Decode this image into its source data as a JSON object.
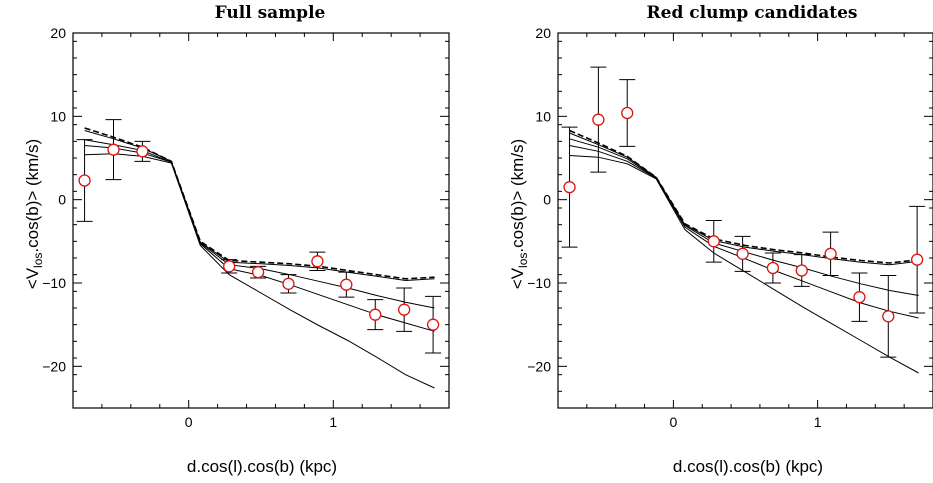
{
  "chart_data": [
    {
      "type": "scatter",
      "title": "Full sample",
      "xlabel": "d.cos(l).cos(b) (kpc)",
      "ylabel_main": "<V",
      "ylabel_sub": "los",
      "ylabel_tail": ".cos(b)> (km/s)",
      "xlim": [
        -0.8,
        1.8
      ],
      "ylim": [
        -25,
        20
      ],
      "x_ticks": [
        0,
        1
      ],
      "x_tick_labels": [
        "0",
        "1"
      ],
      "y_ticks": [
        -20,
        -10,
        0,
        10,
        20
      ],
      "y_tick_labels": [
        "−20",
        "−10",
        "0",
        "10",
        "20"
      ],
      "grid": false,
      "marker_color": "#dd1111",
      "points": [
        {
          "x": -0.72,
          "y": 2.3,
          "err_lo": 4.9,
          "err_hi": 4.9
        },
        {
          "x": -0.52,
          "y": 6.0,
          "err_lo": 3.6,
          "err_hi": 3.6
        },
        {
          "x": -0.32,
          "y": 5.8,
          "err_lo": 1.2,
          "err_hi": 1.2
        },
        {
          "x": 0.28,
          "y": -8.0,
          "err_lo": 0.8,
          "err_hi": 0.8
        },
        {
          "x": 0.48,
          "y": -8.7,
          "err_lo": 0.7,
          "err_hi": 0.7
        },
        {
          "x": 0.69,
          "y": -10.1,
          "err_lo": 1.1,
          "err_hi": 1.1
        },
        {
          "x": 0.89,
          "y": -7.4,
          "err_lo": 1.1,
          "err_hi": 1.1
        },
        {
          "x": 1.09,
          "y": -10.2,
          "err_lo": 1.5,
          "err_hi": 1.5
        },
        {
          "x": 1.29,
          "y": -13.8,
          "err_lo": 1.8,
          "err_hi": 1.8
        },
        {
          "x": 1.49,
          "y": -13.2,
          "err_lo": 2.6,
          "err_hi": 2.6
        },
        {
          "x": 1.69,
          "y": -15.0,
          "err_lo": 3.4,
          "err_hi": 3.4
        }
      ],
      "models": [
        {
          "style": "dashed",
          "x": [
            -0.72,
            -0.52,
            -0.32,
            -0.12,
            0.08,
            0.28,
            0.5,
            0.7,
            0.9,
            1.1,
            1.3,
            1.5,
            1.7
          ],
          "y": [
            8.6,
            7.5,
            6.3,
            4.6,
            -5.0,
            -7.3,
            -7.5,
            -7.7,
            -8.0,
            -8.5,
            -9.0,
            -9.5,
            -9.3
          ]
        },
        {
          "style": "solid",
          "x": [
            -0.72,
            -0.52,
            -0.32,
            -0.12,
            0.08,
            0.28,
            0.5,
            0.7,
            0.9,
            1.1,
            1.3,
            1.5,
            1.7
          ],
          "y": [
            8.3,
            7.3,
            6.2,
            4.6,
            -5.1,
            -7.5,
            -7.7,
            -7.9,
            -8.2,
            -8.7,
            -9.2,
            -9.7,
            -9.5
          ]
        },
        {
          "style": "solid",
          "x": [
            -0.72,
            -0.52,
            -0.32,
            -0.12,
            0.08,
            0.28,
            0.5,
            0.7,
            0.9,
            1.1,
            1.3,
            1.5,
            1.7
          ],
          "y": [
            7.2,
            6.6,
            5.9,
            4.5,
            -5.2,
            -7.8,
            -8.3,
            -9.0,
            -9.8,
            -10.6,
            -11.5,
            -12.3,
            -13.0
          ]
        },
        {
          "style": "solid",
          "x": [
            -0.72,
            -0.52,
            -0.32,
            -0.12,
            0.08,
            0.28,
            0.5,
            0.7,
            0.9,
            1.1,
            1.3,
            1.5,
            1.7
          ],
          "y": [
            6.5,
            6.2,
            5.6,
            4.5,
            -5.3,
            -8.3,
            -9.1,
            -10.2,
            -11.4,
            -12.6,
            -13.8,
            -14.8,
            -15.8
          ]
        },
        {
          "style": "solid",
          "x": [
            -0.72,
            -0.52,
            -0.32,
            -0.12,
            0.08,
            0.28,
            0.5,
            0.7,
            0.9,
            1.1,
            1.3,
            1.5,
            1.7
          ],
          "y": [
            5.4,
            5.5,
            5.2,
            4.4,
            -5.5,
            -9.0,
            -11.2,
            -13.2,
            -15.1,
            -16.9,
            -18.9,
            -21.0,
            -22.6
          ]
        }
      ]
    },
    {
      "type": "scatter",
      "title": "Red clump candidates",
      "xlabel": "d.cos(l).cos(b) (kpc)",
      "ylabel_main": "<V",
      "ylabel_sub": "los",
      "ylabel_tail": ".cos(b)> (km/s)",
      "xlim": [
        -0.8,
        1.8
      ],
      "ylim": [
        -25,
        20
      ],
      "x_ticks": [
        0,
        1
      ],
      "x_tick_labels": [
        "0",
        "1"
      ],
      "y_ticks": [
        -20,
        -10,
        0,
        10,
        20
      ],
      "y_tick_labels": [
        "−20",
        "−10",
        "0",
        "10",
        "20"
      ],
      "grid": false,
      "marker_color": "#dd1111",
      "points": [
        {
          "x": -0.72,
          "y": 1.5,
          "err_lo": 7.2,
          "err_hi": 7.2
        },
        {
          "x": -0.52,
          "y": 9.6,
          "err_lo": 6.3,
          "err_hi": 6.3
        },
        {
          "x": -0.32,
          "y": 10.4,
          "err_lo": 4.0,
          "err_hi": 4.0
        },
        {
          "x": 0.28,
          "y": -5.0,
          "err_lo": 2.5,
          "err_hi": 2.5
        },
        {
          "x": 0.48,
          "y": -6.5,
          "err_lo": 2.1,
          "err_hi": 2.1
        },
        {
          "x": 0.69,
          "y": -8.2,
          "err_lo": 1.8,
          "err_hi": 1.8
        },
        {
          "x": 0.89,
          "y": -8.5,
          "err_lo": 1.9,
          "err_hi": 1.9
        },
        {
          "x": 1.09,
          "y": -6.5,
          "err_lo": 2.6,
          "err_hi": 2.6
        },
        {
          "x": 1.29,
          "y": -11.7,
          "err_lo": 2.9,
          "err_hi": 2.9
        },
        {
          "x": 1.49,
          "y": -14.0,
          "err_lo": 4.9,
          "err_hi": 4.9
        },
        {
          "x": 1.69,
          "y": -7.2,
          "err_lo": 6.4,
          "err_hi": 6.4
        }
      ],
      "models": [
        {
          "style": "dashed",
          "x": [
            -0.72,
            -0.52,
            -0.32,
            -0.12,
            0.08,
            0.28,
            0.5,
            0.7,
            0.9,
            1.1,
            1.3,
            1.5,
            1.7
          ],
          "y": [
            8.3,
            6.8,
            5.2,
            2.7,
            -2.9,
            -4.7,
            -5.5,
            -6.0,
            -6.4,
            -6.9,
            -7.3,
            -7.6,
            -7.2
          ]
        },
        {
          "style": "solid",
          "x": [
            -0.72,
            -0.52,
            -0.32,
            -0.12,
            0.08,
            0.28,
            0.5,
            0.7,
            0.9,
            1.1,
            1.3,
            1.5,
            1.7
          ],
          "y": [
            8.0,
            6.6,
            5.1,
            2.7,
            -3.0,
            -4.9,
            -5.7,
            -6.2,
            -6.6,
            -7.1,
            -7.5,
            -7.8,
            -7.4
          ]
        },
        {
          "style": "solid",
          "x": [
            -0.72,
            -0.52,
            -0.32,
            -0.12,
            0.08,
            0.28,
            0.5,
            0.7,
            0.9,
            1.1,
            1.3,
            1.5,
            1.7
          ],
          "y": [
            7.3,
            6.3,
            4.9,
            2.6,
            -3.1,
            -5.2,
            -6.3,
            -7.3,
            -8.2,
            -9.2,
            -10.1,
            -10.9,
            -11.5
          ]
        },
        {
          "style": "solid",
          "x": [
            -0.72,
            -0.52,
            -0.32,
            -0.12,
            0.08,
            0.28,
            0.5,
            0.7,
            0.9,
            1.1,
            1.3,
            1.5,
            1.7
          ],
          "y": [
            6.5,
            5.8,
            4.6,
            2.6,
            -3.3,
            -5.6,
            -7.1,
            -8.5,
            -9.8,
            -11.1,
            -12.4,
            -13.4,
            -14.2
          ]
        },
        {
          "style": "solid",
          "x": [
            -0.72,
            -0.52,
            -0.32,
            -0.12,
            0.08,
            0.28,
            0.5,
            0.7,
            0.9,
            1.1,
            1.3,
            1.5,
            1.7
          ],
          "y": [
            5.3,
            5.1,
            4.3,
            2.5,
            -3.6,
            -6.4,
            -8.7,
            -10.8,
            -12.9,
            -14.9,
            -16.9,
            -18.9,
            -20.8
          ]
        }
      ]
    }
  ]
}
